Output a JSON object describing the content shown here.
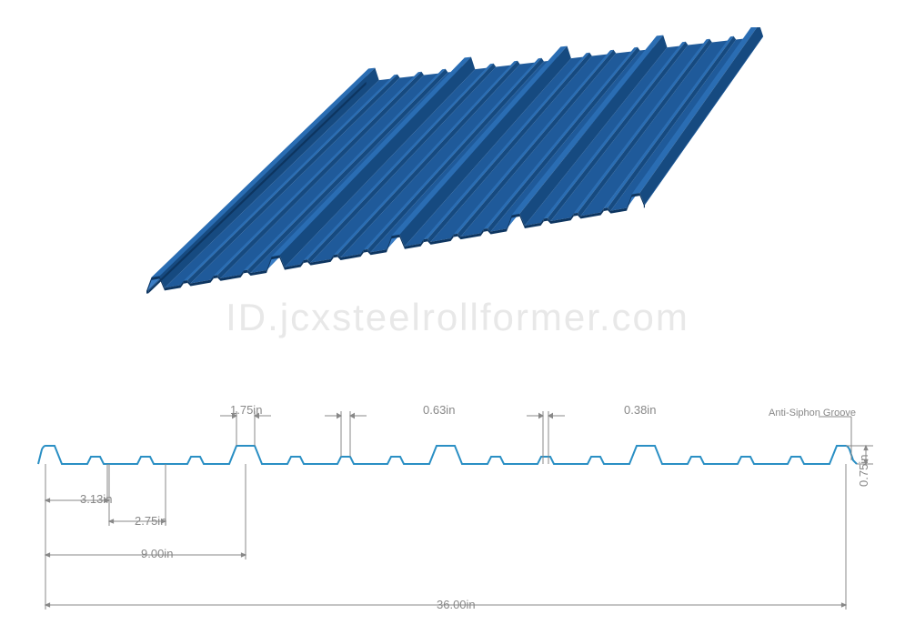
{
  "watermark_text": "ID.jcxsteelrollformer.com",
  "panel": {
    "fill_top": "#2a6db3",
    "fill_mid": "#1f5a9a",
    "fill_dark": "#164a80",
    "fill_shadow": "#0d3560",
    "fill_light": "#3a7dc5"
  },
  "profile": {
    "line_color": "#2a8fc4",
    "line_width": 2,
    "dim_color": "#888888",
    "total_width": "36.00in",
    "rib_height": "0.75in",
    "rib_spacing": "9.00in",
    "rib_top_width": "1.75in",
    "rib_base_offset": "3.13in",
    "rib_base_inner": "2.75in",
    "minor_rib_top": "0.63in",
    "minor_rib_base": "0.38in",
    "anti_siphon_label": "Anti-Siphon Groove"
  }
}
